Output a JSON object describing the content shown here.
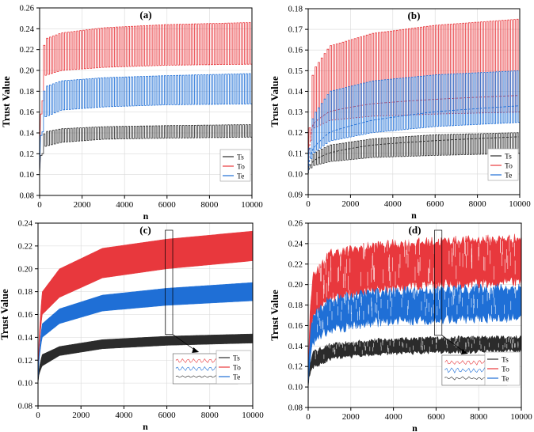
{
  "colors": {
    "Ts": "#2b2b2b",
    "To": "#e8383d",
    "Te": "#1f6fd6",
    "grid": "#d9d9d9",
    "axis": "#000000"
  },
  "chart_data": [
    {
      "type": "line",
      "panel_label": "(a)",
      "xlabel": "n",
      "ylabel": "Trust Value",
      "xlim": [
        0,
        10000
      ],
      "ylim": [
        0.08,
        0.26
      ],
      "xticks": [
        0,
        2000,
        4000,
        6000,
        8000,
        10000
      ],
      "yticks": [
        0.08,
        0.1,
        0.12,
        0.14,
        0.16,
        0.18,
        0.2,
        0.22,
        0.24,
        0.26
      ],
      "grid": true,
      "legend": "bottom-right",
      "style": "square-oscillation",
      "series": [
        {
          "name": "Ts",
          "start": 0.1,
          "x": [
            200,
            1000,
            3000,
            6000,
            10000
          ],
          "low": [
            0.127,
            0.131,
            0.134,
            0.135,
            0.136
          ],
          "high": [
            0.141,
            0.144,
            0.146,
            0.147,
            0.148
          ]
        },
        {
          "name": "To",
          "start": 0.1,
          "x": [
            200,
            1000,
            3000,
            6000,
            10000
          ],
          "low": [
            0.195,
            0.2,
            0.203,
            0.205,
            0.206
          ],
          "high": [
            0.23,
            0.236,
            0.241,
            0.244,
            0.246
          ]
        },
        {
          "name": "Te",
          "start": 0.1,
          "x": [
            200,
            1000,
            3000,
            6000,
            10000
          ],
          "low": [
            0.155,
            0.162,
            0.165,
            0.167,
            0.168
          ],
          "high": [
            0.184,
            0.19,
            0.193,
            0.195,
            0.197
          ]
        }
      ]
    },
    {
      "type": "line",
      "panel_label": "(b)",
      "xlabel": "n",
      "ylabel": "Trust Value",
      "xlim": [
        0,
        10000
      ],
      "ylim": [
        0.09,
        0.18
      ],
      "xticks": [
        0,
        2000,
        4000,
        6000,
        8000,
        10000
      ],
      "yticks": [
        0.09,
        0.1,
        0.11,
        0.12,
        0.13,
        0.14,
        0.15,
        0.16,
        0.17,
        0.18
      ],
      "grid": true,
      "legend": "bottom-right",
      "style": "square-oscillation",
      "series": [
        {
          "name": "Ts",
          "start": 0.1,
          "x": [
            200,
            1000,
            3000,
            6000,
            10000
          ],
          "low": [
            0.104,
            0.106,
            0.108,
            0.109,
            0.11
          ],
          "high": [
            0.11,
            0.114,
            0.117,
            0.119,
            0.12
          ]
        },
        {
          "name": "To",
          "start": 0.1,
          "x": [
            200,
            1000,
            3000,
            6000,
            10000
          ],
          "low": [
            0.122,
            0.126,
            0.128,
            0.129,
            0.13
          ],
          "high": [
            0.15,
            0.162,
            0.168,
            0.172,
            0.175
          ]
        },
        {
          "name": "Te",
          "start": 0.1,
          "x": [
            200,
            1000,
            3000,
            6000,
            10000
          ],
          "low": [
            0.11,
            0.116,
            0.12,
            0.123,
            0.125
          ],
          "high": [
            0.128,
            0.14,
            0.145,
            0.148,
            0.15
          ]
        }
      ]
    },
    {
      "type": "area",
      "panel_label": "(c)",
      "xlabel": "n",
      "ylabel": "Trust Value",
      "xlim": [
        0,
        10000
      ],
      "ylim": [
        0.08,
        0.24
      ],
      "xticks": [
        0,
        2000,
        4000,
        6000,
        8000,
        10000
      ],
      "yticks": [
        0.08,
        0.1,
        0.12,
        0.14,
        0.16,
        0.18,
        0.2,
        0.22,
        0.24
      ],
      "grid": true,
      "legend": "bottom-right",
      "style": "band",
      "zoom_window": [
        6000,
        6200
      ],
      "series": [
        {
          "name": "Ts",
          "start": 0.1,
          "x": [
            200,
            1000,
            3000,
            6000,
            10000
          ],
          "low": [
            0.115,
            0.124,
            0.13,
            0.133,
            0.135
          ],
          "high": [
            0.125,
            0.132,
            0.138,
            0.141,
            0.143
          ]
        },
        {
          "name": "To",
          "start": 0.1,
          "x": [
            200,
            1000,
            3000,
            6000,
            10000
          ],
          "low": [
            0.16,
            0.175,
            0.192,
            0.2,
            0.207
          ],
          "high": [
            0.18,
            0.2,
            0.218,
            0.226,
            0.233
          ]
        },
        {
          "name": "Te",
          "start": 0.1,
          "x": [
            200,
            1000,
            3000,
            6000,
            10000
          ],
          "low": [
            0.14,
            0.152,
            0.163,
            0.168,
            0.172
          ],
          "high": [
            0.152,
            0.165,
            0.177,
            0.183,
            0.188
          ]
        }
      ]
    },
    {
      "type": "area",
      "panel_label": "(d)",
      "xlabel": "n",
      "ylabel": "Trust Value",
      "xlim": [
        0,
        10000
      ],
      "ylim": [
        0.08,
        0.26
      ],
      "xticks": [
        0,
        2000,
        4000,
        6000,
        8000,
        10000
      ],
      "yticks": [
        0.08,
        0.1,
        0.12,
        0.14,
        0.16,
        0.18,
        0.2,
        0.22,
        0.24,
        0.26
      ],
      "grid": true,
      "legend": "bottom-right",
      "style": "noisy-band",
      "zoom_window": [
        6000,
        6200
      ],
      "series": [
        {
          "name": "Ts",
          "start": 0.1,
          "x": [
            200,
            1000,
            3000,
            6000,
            10000
          ],
          "low": [
            0.12,
            0.128,
            0.133,
            0.135,
            0.136
          ],
          "high": [
            0.133,
            0.14,
            0.145,
            0.147,
            0.148
          ]
        },
        {
          "name": "To",
          "start": 0.1,
          "x": [
            200,
            1000,
            3000,
            6000,
            10000
          ],
          "low": [
            0.17,
            0.188,
            0.197,
            0.202,
            0.205
          ],
          "high": [
            0.205,
            0.228,
            0.236,
            0.24,
            0.243
          ]
        },
        {
          "name": "Te",
          "start": 0.1,
          "x": [
            200,
            1000,
            3000,
            6000,
            10000
          ],
          "low": [
            0.145,
            0.158,
            0.165,
            0.168,
            0.17
          ],
          "high": [
            0.165,
            0.183,
            0.19,
            0.193,
            0.195
          ]
        }
      ]
    }
  ]
}
